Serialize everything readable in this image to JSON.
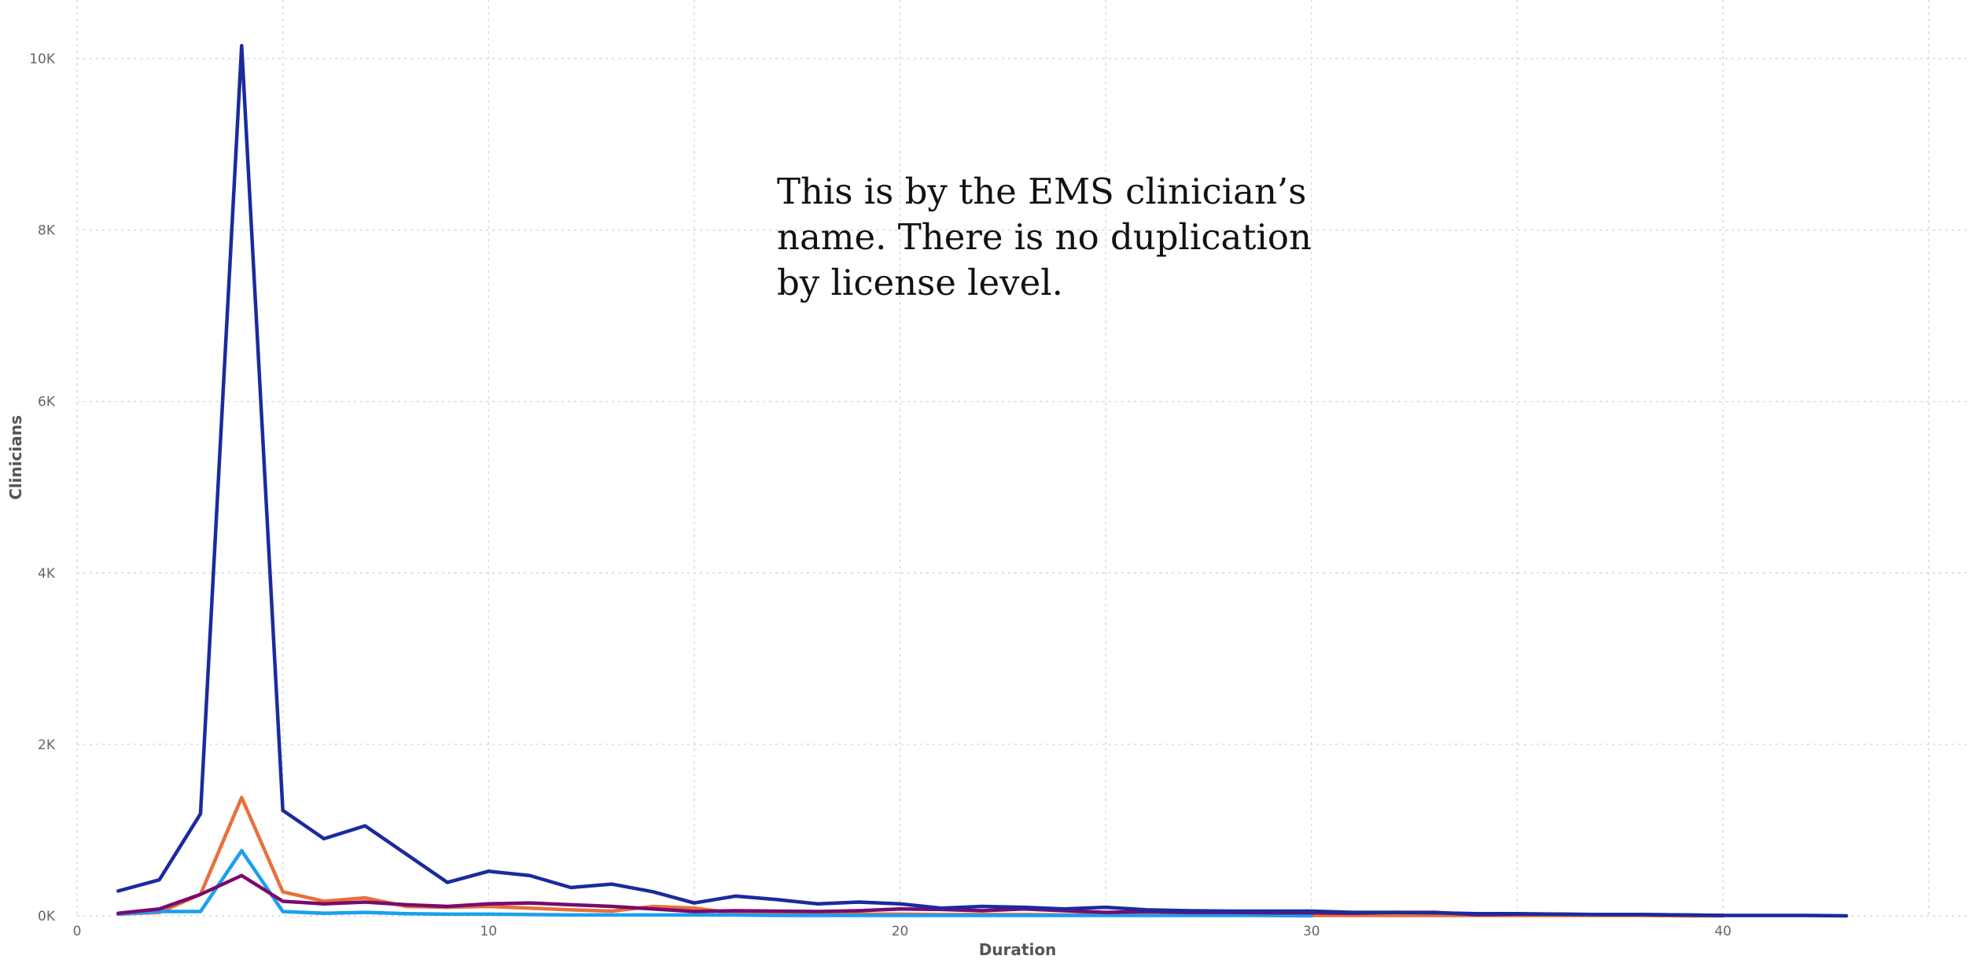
{
  "annotation": {
    "text": "This is by the EMS clinician’s name. There is no duplication by license level."
  },
  "chart_data": {
    "type": "line",
    "title": "",
    "xlabel": "Duration",
    "ylabel": "Clinicians",
    "xlim": [
      0,
      46
    ],
    "ylim": [
      0,
      10500
    ],
    "x_ticks": [
      0,
      10,
      20,
      30,
      40
    ],
    "x_tick_labels": [
      "0",
      "10",
      "20",
      "30",
      "40"
    ],
    "y_ticks": [
      0,
      2000,
      4000,
      6000,
      8000,
      10000
    ],
    "y_tick_labels": [
      "0K",
      "2K",
      "4K",
      "6K",
      "8K",
      "10K"
    ],
    "grid": true,
    "legend": "none",
    "series": [
      {
        "color": "#1b2a9e",
        "points": [
          [
            1,
            290
          ],
          [
            2,
            420
          ],
          [
            3,
            1190
          ],
          [
            4,
            10150
          ],
          [
            5,
            1230
          ],
          [
            6,
            900
          ],
          [
            7,
            1050
          ],
          [
            8,
            720
          ],
          [
            9,
            390
          ],
          [
            10,
            520
          ],
          [
            11,
            470
          ],
          [
            12,
            330
          ],
          [
            13,
            370
          ],
          [
            14,
            280
          ],
          [
            15,
            150
          ],
          [
            16,
            230
          ],
          [
            17,
            190
          ],
          [
            18,
            140
          ],
          [
            19,
            160
          ],
          [
            20,
            140
          ],
          [
            21,
            90
          ],
          [
            22,
            110
          ],
          [
            23,
            100
          ],
          [
            24,
            80
          ],
          [
            25,
            100
          ],
          [
            26,
            70
          ],
          [
            27,
            60
          ],
          [
            28,
            55
          ],
          [
            29,
            55
          ],
          [
            30,
            55
          ],
          [
            31,
            40
          ],
          [
            32,
            40
          ],
          [
            33,
            35
          ],
          [
            34,
            25
          ],
          [
            35,
            25
          ],
          [
            36,
            20
          ],
          [
            37,
            15
          ],
          [
            38,
            15
          ],
          [
            39,
            10
          ],
          [
            40,
            5
          ],
          [
            41,
            5
          ],
          [
            42,
            5
          ],
          [
            43,
            0
          ]
        ]
      },
      {
        "color": "#e8703a",
        "points": [
          [
            1,
            20
          ],
          [
            2,
            40
          ],
          [
            3,
            250
          ],
          [
            4,
            1380
          ],
          [
            5,
            280
          ],
          [
            6,
            170
          ],
          [
            7,
            210
          ],
          [
            8,
            110
          ],
          [
            9,
            100
          ],
          [
            10,
            110
          ],
          [
            11,
            90
          ],
          [
            12,
            70
          ],
          [
            13,
            55
          ],
          [
            14,
            110
          ],
          [
            15,
            90
          ],
          [
            16,
            30
          ],
          [
            17,
            30
          ],
          [
            18,
            20
          ],
          [
            19,
            20
          ],
          [
            20,
            20
          ],
          [
            21,
            15
          ],
          [
            22,
            15
          ],
          [
            23,
            15
          ],
          [
            24,
            10
          ],
          [
            25,
            10
          ],
          [
            26,
            10
          ],
          [
            27,
            10
          ],
          [
            28,
            10
          ],
          [
            29,
            5
          ],
          [
            30,
            5
          ],
          [
            31,
            5
          ],
          [
            32,
            5
          ],
          [
            33,
            5
          ],
          [
            34,
            5
          ],
          [
            35,
            5
          ],
          [
            36,
            5
          ],
          [
            37,
            5
          ],
          [
            38,
            5
          ],
          [
            39,
            0
          ],
          [
            40,
            0
          ]
        ]
      },
      {
        "color": "#1aa0f0",
        "points": [
          [
            1,
            20
          ],
          [
            2,
            50
          ],
          [
            3,
            50
          ],
          [
            4,
            760
          ],
          [
            5,
            50
          ],
          [
            6,
            30
          ],
          [
            7,
            40
          ],
          [
            8,
            25
          ],
          [
            9,
            20
          ],
          [
            10,
            20
          ],
          [
            11,
            15
          ],
          [
            12,
            10
          ],
          [
            13,
            10
          ],
          [
            14,
            10
          ],
          [
            15,
            10
          ],
          [
            16,
            10
          ],
          [
            17,
            5
          ],
          [
            18,
            5
          ],
          [
            19,
            5
          ],
          [
            20,
            5
          ],
          [
            21,
            5
          ],
          [
            22,
            5
          ],
          [
            23,
            5
          ],
          [
            24,
            5
          ],
          [
            25,
            5
          ],
          [
            26,
            5
          ],
          [
            27,
            5
          ],
          [
            28,
            5
          ],
          [
            29,
            5
          ],
          [
            30,
            0
          ]
        ]
      },
      {
        "color": "#7a0a6e",
        "points": [
          [
            1,
            30
          ],
          [
            2,
            80
          ],
          [
            3,
            250
          ],
          [
            4,
            470
          ],
          [
            5,
            170
          ],
          [
            6,
            140
          ],
          [
            7,
            160
          ],
          [
            8,
            130
          ],
          [
            9,
            110
          ],
          [
            10,
            140
          ],
          [
            11,
            150
          ],
          [
            12,
            130
          ],
          [
            13,
            110
          ],
          [
            14,
            80
          ],
          [
            15,
            50
          ],
          [
            16,
            60
          ],
          [
            17,
            55
          ],
          [
            18,
            50
          ],
          [
            19,
            60
          ],
          [
            20,
            80
          ],
          [
            21,
            75
          ],
          [
            22,
            60
          ],
          [
            23,
            80
          ],
          [
            24,
            60
          ],
          [
            25,
            40
          ],
          [
            26,
            50
          ],
          [
            27,
            40
          ],
          [
            28,
            40
          ],
          [
            29,
            35
          ],
          [
            30,
            35
          ],
          [
            31,
            30
          ],
          [
            32,
            40
          ],
          [
            33,
            40
          ],
          [
            34,
            15
          ],
          [
            35,
            20
          ],
          [
            36,
            20
          ],
          [
            37,
            15
          ],
          [
            38,
            15
          ],
          [
            39,
            10
          ],
          [
            40,
            5
          ]
        ]
      }
    ]
  }
}
